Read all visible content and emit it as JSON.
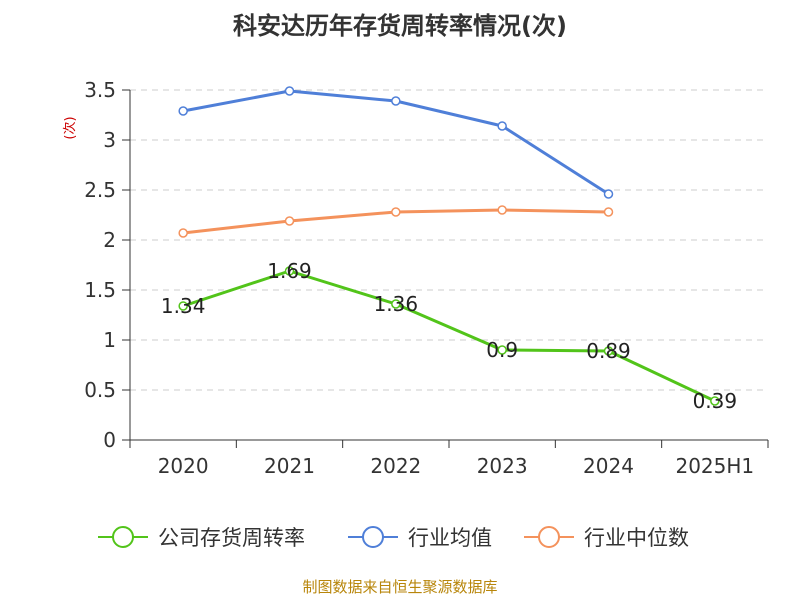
{
  "chart_data": {
    "type": "line",
    "title": "科安达历年存货周转率情况(次)",
    "xlabel": "",
    "ylabel": "(次)",
    "categories": [
      "2020",
      "2021",
      "2022",
      "2023",
      "2024",
      "2025H1"
    ],
    "ylim": [
      0,
      3.5
    ],
    "yticks": [
      "0",
      "0.5",
      "1",
      "1.5",
      "2",
      "2.5",
      "3",
      "3.5"
    ],
    "grid": true,
    "legend_position": "bottom",
    "series": [
      {
        "name": "公司存货周转率",
        "color": "#52c41a",
        "values": [
          1.34,
          1.69,
          1.36,
          0.9,
          0.89,
          0.39
        ],
        "labels": [
          "1.34",
          "1.69",
          "1.36",
          "0.9",
          "0.89",
          "0.39"
        ]
      },
      {
        "name": "行业均值",
        "color": "#4f7fd8",
        "values": [
          3.29,
          3.49,
          3.39,
          3.14,
          2.46,
          null
        ]
      },
      {
        "name": "行业中位数",
        "color": "#f4925c",
        "values": [
          2.07,
          2.19,
          2.28,
          2.3,
          2.28,
          null
        ]
      }
    ]
  },
  "footer": "制图数据来自恒生聚源数据库"
}
